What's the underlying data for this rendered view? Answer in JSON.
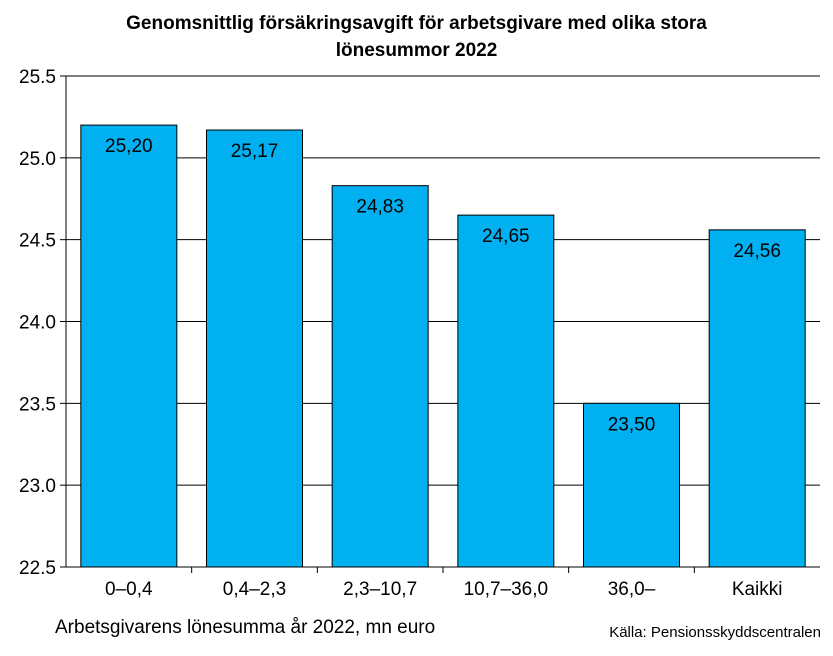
{
  "chart_data": {
    "type": "bar",
    "title_lines": [
      "Genomsnittlig försäkringsavgift för arbetsgivare med olika stora",
      "lönesummor 2022"
    ],
    "categories": [
      "0–0,4",
      "0,4–2,3",
      "2,3–10,7",
      "10,7–36,0",
      "36,0–",
      "Kaikki"
    ],
    "values": [
      25.2,
      25.17,
      24.83,
      24.65,
      23.5,
      24.56
    ],
    "data_labels": [
      "25,20",
      "25,17",
      "24,83",
      "24,65",
      "23,50",
      "24,56"
    ],
    "xlabel": "Arbetsgivarens lönesumma år 2022, mn euro",
    "ylabel": "",
    "ylim": [
      22.5,
      25.5
    ],
    "yticks": [
      22.5,
      23.0,
      23.5,
      24.0,
      24.5,
      25.0,
      25.5
    ],
    "ytick_labels": [
      "22.5",
      "23.0",
      "23.5",
      "24.0",
      "24.5",
      "25.0",
      "25.5"
    ],
    "grid": true,
    "bar_color": "#00B0F0",
    "source": "Källa: Pensionsskyddscentralen"
  }
}
